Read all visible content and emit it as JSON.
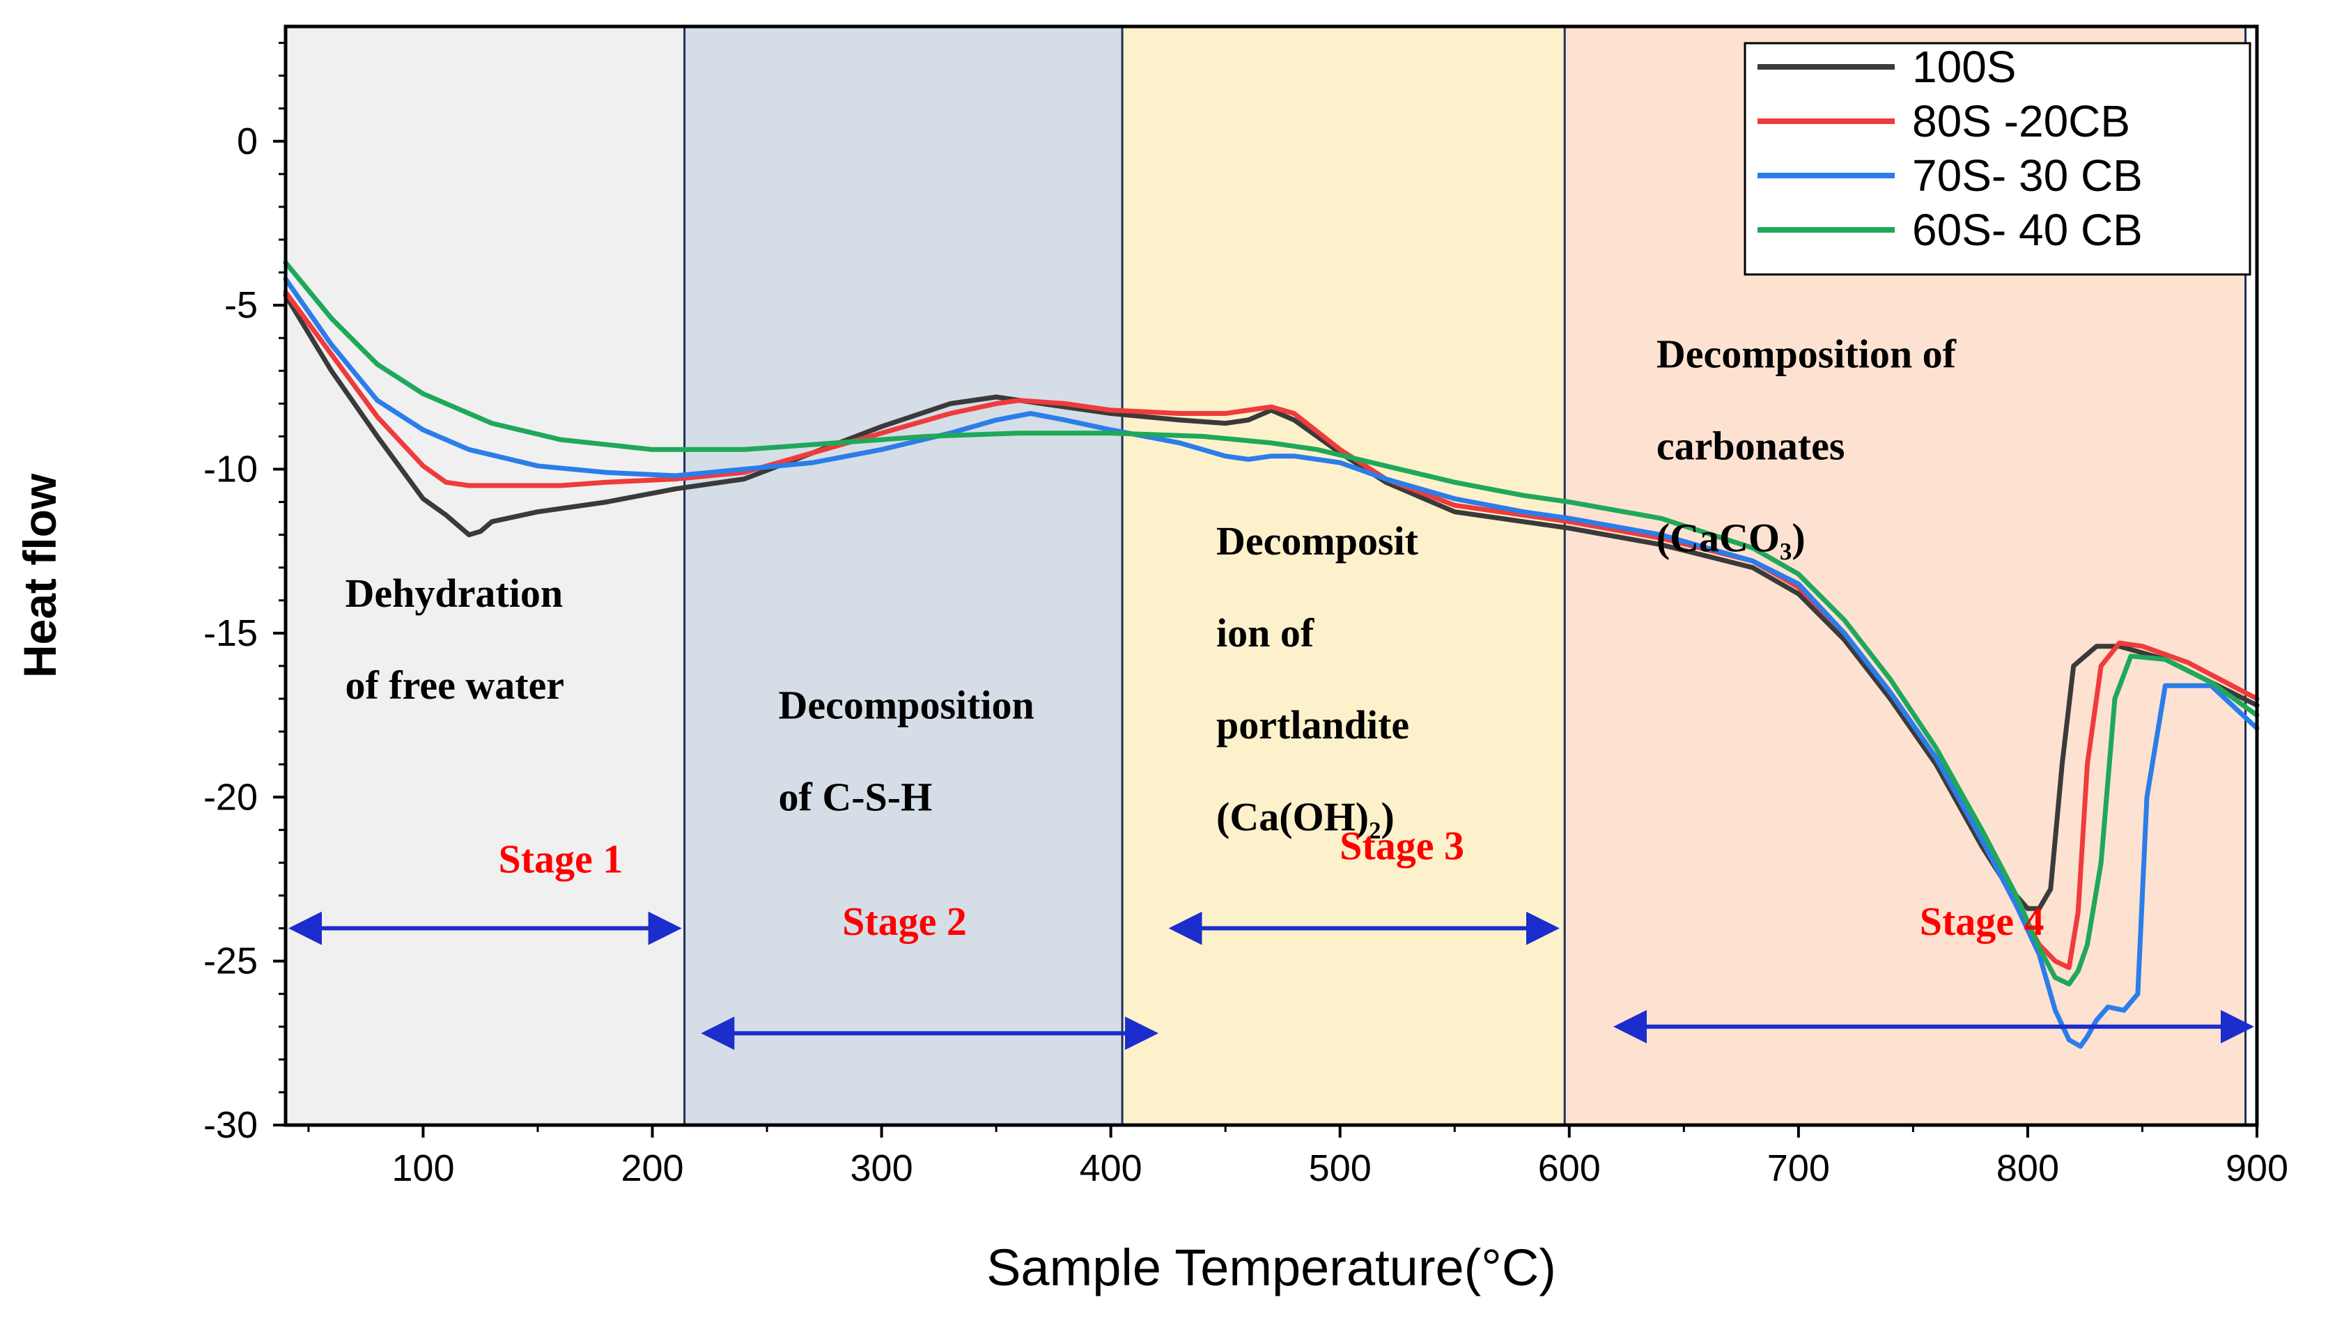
{
  "chart_data": {
    "type": "line",
    "title": "",
    "xlabel": "Sample Temperature(°C)",
    "ylabel": "Heat flow",
    "xlim": [
      40,
      900
    ],
    "ylim": [
      -30,
      3.5
    ],
    "xticks": [
      100,
      200,
      300,
      400,
      500,
      600,
      700,
      800,
      900
    ],
    "yticks": [
      0,
      -5,
      -10,
      -15,
      -20,
      -25,
      -30
    ],
    "legend_position": "top-right",
    "regions": [
      {
        "from": 40,
        "to": 214,
        "color": "#f0f0f0"
      },
      {
        "from": 214,
        "to": 405,
        "color": "#d5dee7"
      },
      {
        "from": 405,
        "to": 598,
        "color": "#fdf1cc"
      },
      {
        "from": 598,
        "to": 895,
        "color": "#fde2d2"
      }
    ],
    "annotations": [
      {
        "lines": [
          "Dehydration",
          "of free water"
        ],
        "x": 66,
        "y": -14.2
      },
      {
        "lines": [
          "Decomposition",
          "of C-S-H"
        ],
        "x": 255,
        "y": -17.6
      },
      {
        "lines": [
          "Decomposit",
          "ion of",
          "portlandite",
          "(Ca(OH)₂)"
        ],
        "x": 446,
        "y": -12.6
      },
      {
        "lines": [
          "Decomposition of",
          "carbonates",
          "(CaCO₃)"
        ],
        "x": 638,
        "y": -6.9
      }
    ],
    "stages": [
      {
        "label": "Stage 1",
        "x": 160,
        "y": -22.3,
        "arrow": [
          40,
          214,
          -24.0
        ]
      },
      {
        "label": "Stage 2",
        "x": 310,
        "y": -24.2,
        "arrow": [
          220,
          422,
          -27.2
        ]
      },
      {
        "label": "Stage 3",
        "x": 527,
        "y": -21.9,
        "arrow": [
          424,
          597,
          -24.0
        ]
      },
      {
        "label": "Stage 4",
        "x": 780,
        "y": -24.2,
        "arrow": [
          618,
          900,
          -27.0
        ]
      }
    ],
    "series": [
      {
        "name": "100S",
        "color": "#3a3a3a",
        "x": [
          40,
          60,
          80,
          100,
          110,
          120,
          125,
          130,
          150,
          180,
          210,
          240,
          270,
          300,
          330,
          350,
          370,
          400,
          430,
          450,
          460,
          470,
          480,
          500,
          520,
          550,
          580,
          600,
          640,
          680,
          700,
          720,
          740,
          760,
          780,
          790,
          800,
          805,
          810,
          815,
          820,
          830,
          840,
          860,
          880,
          900
        ],
        "y": [
          -4.7,
          -7.0,
          -9.0,
          -10.9,
          -11.4,
          -12.0,
          -11.9,
          -11.6,
          -11.3,
          -11.0,
          -10.6,
          -10.3,
          -9.5,
          -8.7,
          -8.0,
          -7.8,
          -8.0,
          -8.3,
          -8.5,
          -8.6,
          -8.5,
          -8.2,
          -8.5,
          -9.5,
          -10.4,
          -11.3,
          -11.6,
          -11.8,
          -12.3,
          -13.0,
          -13.8,
          -15.2,
          -17.0,
          -19.0,
          -21.5,
          -22.6,
          -23.4,
          -23.4,
          -22.8,
          -19.0,
          -16.0,
          -15.4,
          -15.4,
          -15.8,
          -16.5,
          -17.2
        ]
      },
      {
        "name": "80S -20CB",
        "color": "#ef3b3b",
        "x": [
          40,
          60,
          80,
          100,
          110,
          120,
          140,
          160,
          180,
          210,
          240,
          270,
          300,
          330,
          350,
          360,
          380,
          400,
          430,
          450,
          470,
          480,
          500,
          520,
          550,
          580,
          600,
          640,
          680,
          700,
          720,
          740,
          760,
          780,
          795,
          805,
          812,
          818,
          822,
          826,
          832,
          840,
          850,
          870,
          900
        ],
        "y": [
          -4.6,
          -6.5,
          -8.4,
          -9.9,
          -10.4,
          -10.5,
          -10.5,
          -10.5,
          -10.4,
          -10.3,
          -10.1,
          -9.5,
          -8.9,
          -8.3,
          -8.0,
          -7.9,
          -8.0,
          -8.2,
          -8.3,
          -8.3,
          -8.1,
          -8.3,
          -9.4,
          -10.3,
          -11.1,
          -11.4,
          -11.6,
          -12.1,
          -12.8,
          -13.6,
          -15.0,
          -16.8,
          -18.8,
          -21.3,
          -23.2,
          -24.5,
          -25.0,
          -25.2,
          -23.5,
          -19.0,
          -16.0,
          -15.3,
          -15.4,
          -15.9,
          -17.0
        ]
      },
      {
        "name": "70S- 30 CB",
        "color": "#2b7de9",
        "x": [
          40,
          60,
          80,
          100,
          120,
          150,
          180,
          210,
          240,
          270,
          300,
          330,
          350,
          365,
          380,
          400,
          430,
          450,
          460,
          470,
          480,
          500,
          520,
          550,
          580,
          600,
          640,
          680,
          700,
          720,
          740,
          760,
          780,
          795,
          805,
          812,
          818,
          823,
          826,
          830,
          835,
          842,
          848,
          852,
          860,
          880,
          900
        ],
        "y": [
          -4.2,
          -6.2,
          -7.9,
          -8.8,
          -9.4,
          -9.9,
          -10.1,
          -10.2,
          -10.0,
          -9.8,
          -9.4,
          -8.9,
          -8.5,
          -8.3,
          -8.5,
          -8.8,
          -9.2,
          -9.6,
          -9.7,
          -9.6,
          -9.6,
          -9.8,
          -10.3,
          -10.9,
          -11.3,
          -11.5,
          -12.0,
          -12.8,
          -13.5,
          -15.0,
          -16.8,
          -18.8,
          -21.3,
          -23.3,
          -24.8,
          -26.5,
          -27.4,
          -27.6,
          -27.3,
          -26.8,
          -26.4,
          -26.5,
          -26.0,
          -20.0,
          -16.6,
          -16.6,
          -17.9
        ]
      },
      {
        "name": "60S- 40 CB",
        "color": "#1fa85a",
        "x": [
          40,
          60,
          80,
          100,
          130,
          160,
          200,
          240,
          280,
          320,
          360,
          400,
          440,
          470,
          490,
          520,
          550,
          580,
          600,
          640,
          680,
          700,
          720,
          740,
          760,
          780,
          795,
          805,
          812,
          818,
          822,
          826,
          832,
          838,
          845,
          860,
          880,
          900
        ],
        "y": [
          -3.7,
          -5.4,
          -6.8,
          -7.7,
          -8.6,
          -9.1,
          -9.4,
          -9.4,
          -9.2,
          -9.0,
          -8.9,
          -8.9,
          -9.0,
          -9.2,
          -9.4,
          -9.9,
          -10.4,
          -10.8,
          -11.0,
          -11.5,
          -12.4,
          -13.2,
          -14.6,
          -16.4,
          -18.5,
          -21.0,
          -23.0,
          -24.6,
          -25.5,
          -25.7,
          -25.3,
          -24.5,
          -22.0,
          -17.0,
          -15.7,
          -15.8,
          -16.5,
          -17.5
        ]
      }
    ]
  }
}
